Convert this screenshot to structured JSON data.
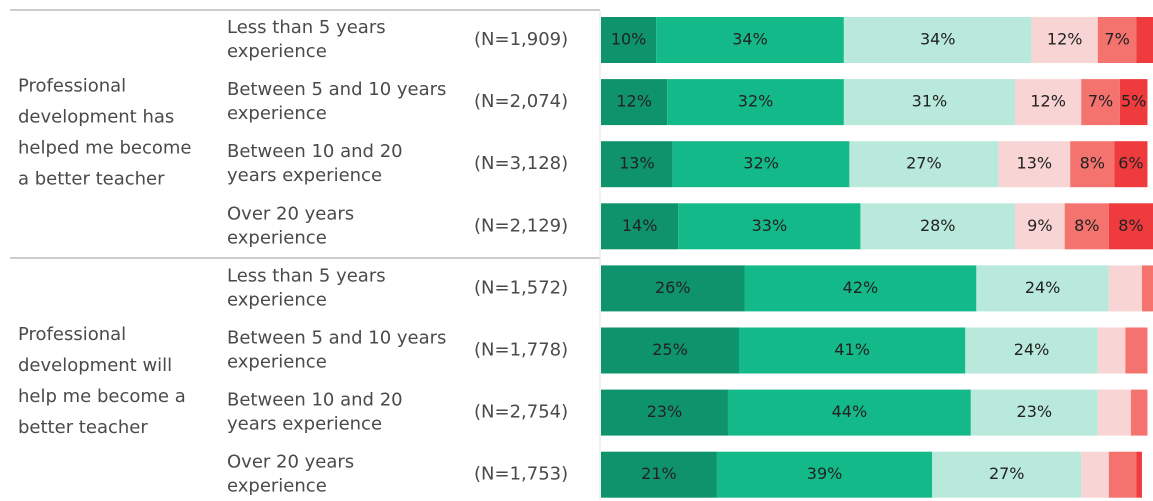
{
  "chart_data": {
    "type": "bar",
    "orientation": "horizontal",
    "stacked": true,
    "group_labels": [
      "Professional\ndevelopment has\nhelped me become\na better teacher",
      "Professional\ndevelopment will\nhelp me become a\nbetter teacher"
    ],
    "categories": [
      "Less than 5 years\nexperience",
      "Between 5 and 10 years\nexperience",
      "Between 10 and 20\nyears experience",
      "Over 20 years\nexperience",
      "Less than 5 years\nexperience",
      "Between 5 and 10 years\nexperience",
      "Between 10 and 20\nyears experience",
      "Over 20 years\nexperience"
    ],
    "n_labels": [
      "(N=1,909)",
      "(N=2,074)",
      "(N=3,128)",
      "(N=2,129)",
      "(N=1,572)",
      "(N=1,778)",
      "(N=2,754)",
      "(N=1,753)"
    ],
    "xlim": [
      0,
      100
    ],
    "series": [
      {
        "color": "#0f936c",
        "values": [
          10,
          12,
          13,
          14,
          26,
          25,
          23,
          21
        ],
        "value_labels": [
          "10%",
          "12%",
          "13%",
          "14%",
          "26%",
          "25%",
          "23%",
          "21%"
        ]
      },
      {
        "color": "#14b98a",
        "values": [
          34,
          32,
          32,
          33,
          42,
          41,
          44,
          39
        ],
        "value_labels": [
          "34%",
          "32%",
          "32%",
          "33%",
          "42%",
          "41%",
          "44%",
          "39%"
        ]
      },
      {
        "color": "#b9e9db",
        "values": [
          34,
          31,
          27,
          28,
          24,
          24,
          23,
          27
        ],
        "value_labels": [
          "34%",
          "31%",
          "27%",
          "28%",
          "24%",
          "24%",
          "23%",
          "27%"
        ]
      },
      {
        "color": "#f9d4d4",
        "values": [
          12,
          12,
          13,
          9,
          6,
          5,
          6,
          5
        ],
        "value_labels": [
          "12%",
          "12%",
          "13%",
          "9%",
          null,
          null,
          null,
          null
        ]
      },
      {
        "color": "#f4736f",
        "values": [
          7,
          7,
          8,
          8,
          2,
          4,
          3,
          5
        ],
        "value_labels": [
          "7%",
          "7%",
          "8%",
          "8%",
          null,
          null,
          null,
          null
        ]
      },
      {
        "color": "#ef3b3d",
        "values": [
          3,
          5,
          6,
          8,
          0,
          0,
          0,
          1
        ],
        "value_labels": [
          null,
          "5%",
          "6%",
          "8%",
          null,
          null,
          null,
          null
        ]
      }
    ]
  }
}
